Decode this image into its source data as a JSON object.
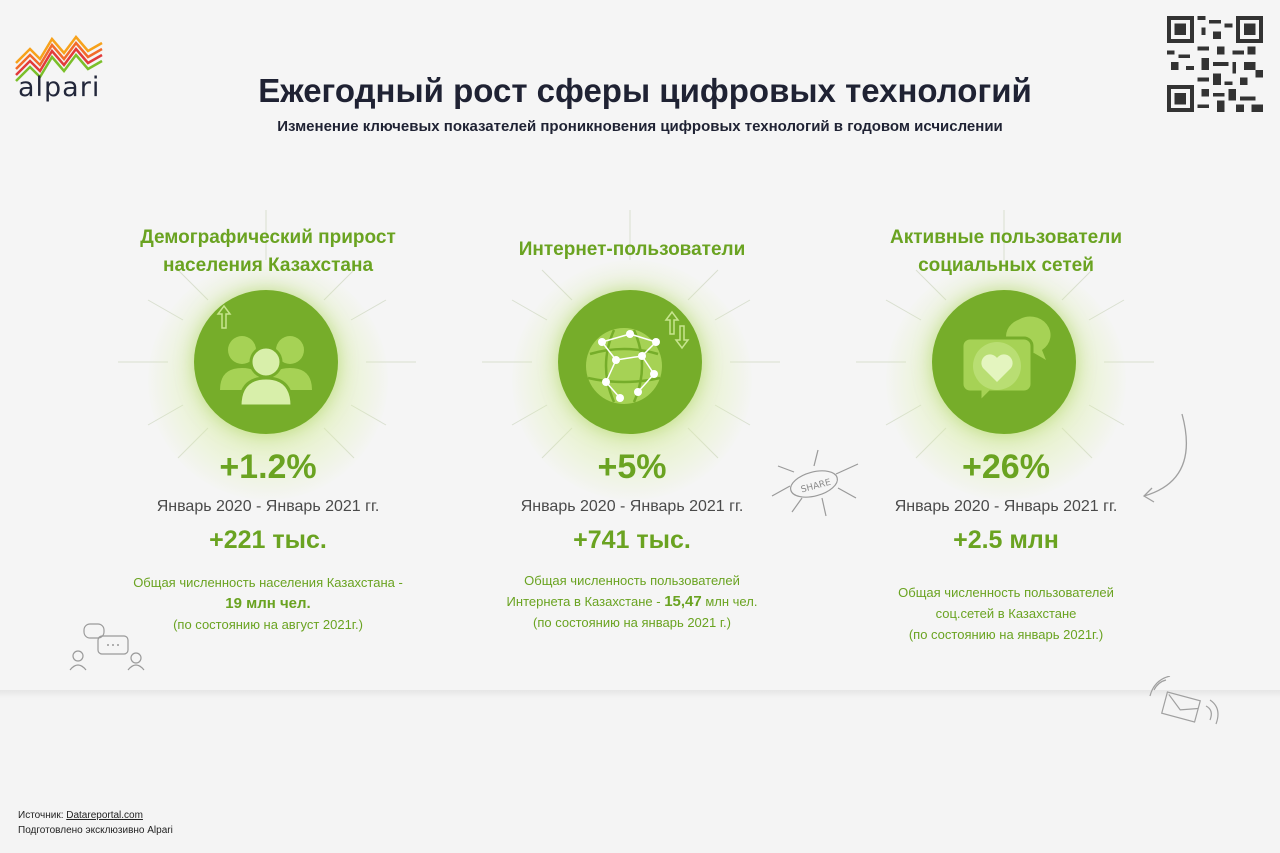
{
  "brand": {
    "name": "alpari"
  },
  "header": {
    "title": "Ежегодный рост сферы цифровых технологий",
    "subtitle": "Изменение ключевых показателей проникновения цифровых технологий в годовом исчислении"
  },
  "cards": [
    {
      "title_line1": "Демографический прирост",
      "title_line2": "населения Казахстана",
      "icon": "people-growth-icon",
      "percent": "+1.2%",
      "period": "Январь 2020 - Январь 2021 гг.",
      "absolute": "+221 тыс.",
      "note_line1": "Общая численность населения Казахстана -",
      "note_bold": "19 млн чел.",
      "note_line3": "(по состоянию на август 2021г.)"
    },
    {
      "title_line1": "Интернет-пользователи",
      "icon": "globe-network-icon",
      "percent": "+5%",
      "period": "Январь 2020 - Январь 2021 гг.",
      "absolute": "+741 тыс.",
      "note_line1": "Общая численность пользователей",
      "note_line2_pre": "Интернета в Казахстане - ",
      "note_bold": "15,47",
      "note_line2_post": " млн чел.",
      "note_line3": "(по состоянию на январь 2021 г.)"
    },
    {
      "title_line1": "Активные пользователи",
      "title_line2": "социальных сетей",
      "icon": "heart-chat-icon",
      "percent": "+26%",
      "period": "Январь 2020 - Январь 2021 гг.",
      "absolute": "+2.5 млн",
      "note_line1": "Общая численность пользователей",
      "note_line2": "соц.сетей в Казахстане",
      "note_line3": "(по состоянию на январь 2021г.)"
    }
  ],
  "doodles": {
    "share_label": "SHARE"
  },
  "footer": {
    "source_label": "Источник: ",
    "source_link": "Datareportal.com",
    "prepared": "Подготовлено эксклюзивно Alpari"
  },
  "colors": {
    "accent": "#76ad2a",
    "accent_text": "#6aa321",
    "title": "#1f2233"
  }
}
